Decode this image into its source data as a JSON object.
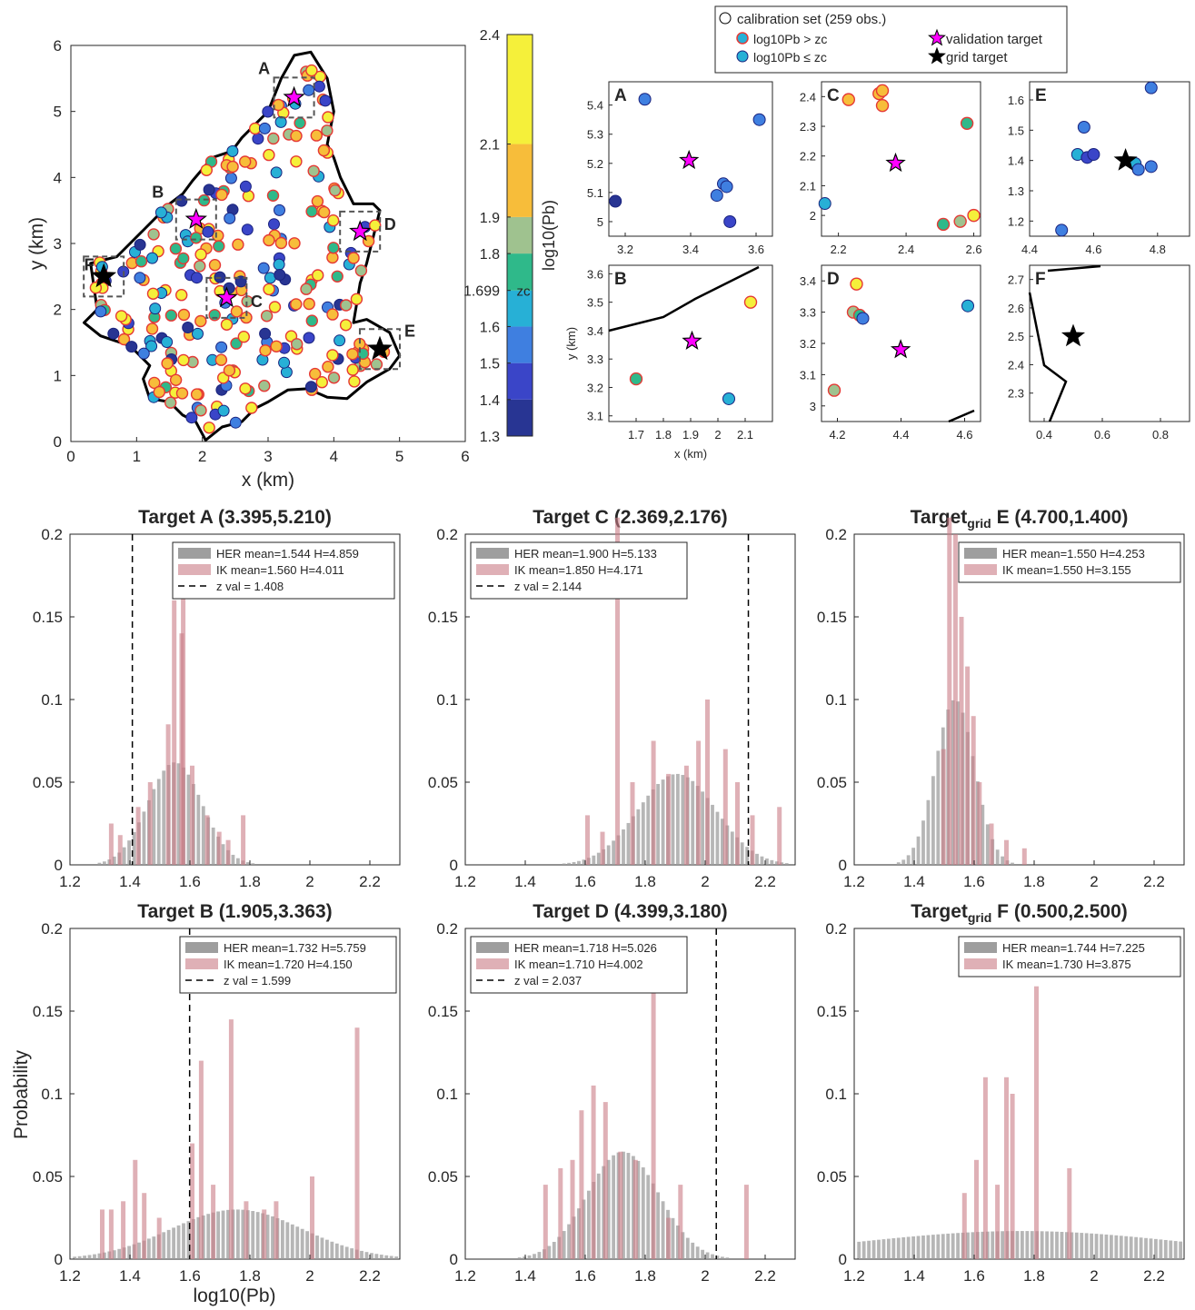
{
  "colors": {
    "colorbar": [
      "#283593",
      "#3a45c8",
      "#3f7fe0",
      "#27b0d6",
      "#2fb98a",
      "#9fc28f",
      "#f7bd3a",
      "#f5f03a"
    ],
    "outline": "#000000",
    "high_edge": "#e53935",
    "her_bar": "#9e9e9e",
    "ik_bar": "#c97b86",
    "validation_star": "#ff00ff"
  },
  "map": {
    "xlabel": "x (km)",
    "ylabel": "y (km)",
    "xticks": [
      "0",
      "1",
      "2",
      "3",
      "4",
      "5",
      "6"
    ],
    "yticks": [
      "0",
      "1",
      "2",
      "3",
      "4",
      "5",
      "6"
    ],
    "box_labels": [
      "A",
      "B",
      "C",
      "D",
      "E",
      "F"
    ]
  },
  "colorbar": {
    "ylabel": "log10(Pb)",
    "ticks": [
      "2.4",
      "2.1",
      "1.9",
      "1.8",
      "1.699",
      "1.6",
      "1.5",
      "1.4",
      "1.3"
    ],
    "zc_label": "zc"
  },
  "legend": {
    "calibration": "calibration set (259 obs.)",
    "high": "log10Pb > zc",
    "low": "log10Pb ≤ zc",
    "validation": "validation target",
    "grid": "grid target"
  },
  "insets": [
    {
      "label": "A",
      "xticks": [
        "3.2",
        "3.4",
        "3.6"
      ],
      "yticks": [
        "5",
        "5.1",
        "5.2",
        "5.3",
        "5.4"
      ]
    },
    {
      "label": "C",
      "xticks": [
        "2.2",
        "2.4",
        "2.6"
      ],
      "yticks": [
        "2",
        "2.1",
        "2.2",
        "2.3",
        "2.4"
      ]
    },
    {
      "label": "E",
      "xticks": [
        "4.4",
        "4.6",
        "4.8"
      ],
      "yticks": [
        "1.2",
        "1.3",
        "1.4",
        "1.5",
        "1.6"
      ]
    },
    {
      "label": "B",
      "xticks": [
        "1.7",
        "1.8",
        "1.9",
        "2",
        "2.1"
      ],
      "yticks": [
        "3.1",
        "3.2",
        "3.3",
        "3.4",
        "3.5",
        "3.6"
      ],
      "xlabel": "x (km)",
      "ylabel": "y (km)"
    },
    {
      "label": "D",
      "xticks": [
        "4.2",
        "4.4",
        "4.6"
      ],
      "yticks": [
        "3",
        "3.1",
        "3.2",
        "3.3",
        "3.4"
      ]
    },
    {
      "label": "F",
      "xticks": [
        "0.4",
        "0.6",
        "0.8"
      ],
      "yticks": [
        "2.3",
        "2.4",
        "2.5",
        "2.6",
        "2.7"
      ]
    }
  ],
  "chart_data": [
    {
      "type": "scatter",
      "title": "",
      "xlabel": "x (km)",
      "ylabel": "y (km)",
      "xlim": [
        0,
        6
      ],
      "ylim": [
        0,
        6
      ],
      "validation_targets": [
        {
          "label": "A",
          "x": 3.395,
          "y": 5.21
        },
        {
          "label": "B",
          "x": 1.905,
          "y": 3.363
        },
        {
          "label": "C",
          "x": 2.369,
          "y": 2.176
        },
        {
          "label": "D",
          "x": 4.399,
          "y": 3.18
        }
      ],
      "grid_targets": [
        {
          "label": "E",
          "x": 4.7,
          "y": 1.4
        },
        {
          "label": "F",
          "x": 0.5,
          "y": 2.5
        }
      ]
    },
    {
      "type": "bar",
      "title": "Target A (3.395,5.210)",
      "xlim": [
        1.2,
        2.3
      ],
      "ylim": [
        0,
        0.2
      ],
      "legend": [
        "HER mean=1.544 H=4.859",
        "IK mean=1.560 H=4.011",
        "z val = 1.408"
      ],
      "z_val": 1.408,
      "her": {
        "center": 1.544,
        "sd": 0.09,
        "peak": 0.062
      },
      "ik_peaks": [
        [
          1.33,
          0.025
        ],
        [
          1.36,
          0.018
        ],
        [
          1.42,
          0.035
        ],
        [
          1.46,
          0.05
        ],
        [
          1.52,
          0.085
        ],
        [
          1.54,
          0.16
        ],
        [
          1.565,
          0.14
        ],
        [
          1.57,
          0.17
        ],
        [
          1.6,
          0.06
        ],
        [
          1.65,
          0.03
        ],
        [
          1.69,
          0.02
        ],
        [
          1.72,
          0.015
        ],
        [
          1.77,
          0.03
        ]
      ]
    },
    {
      "type": "bar",
      "title": "Target C (2.369,2.176)",
      "xlim": [
        1.2,
        2.3
      ],
      "ylim": [
        0,
        0.2
      ],
      "legend": [
        "HER mean=1.900 H=5.133",
        "IK mean=1.850 H=4.171",
        "z val = 2.144"
      ],
      "z_val": 2.144,
      "her": {
        "center": 1.9,
        "sd": 0.13,
        "peak": 0.055
      },
      "ik_peaks": [
        [
          1.6,
          0.03
        ],
        [
          1.65,
          0.02
        ],
        [
          1.7,
          0.21
        ],
        [
          1.75,
          0.05
        ],
        [
          1.82,
          0.075
        ],
        [
          1.87,
          0.055
        ],
        [
          1.93,
          0.06
        ],
        [
          1.97,
          0.075
        ],
        [
          2.0,
          0.1
        ],
        [
          2.06,
          0.07
        ],
        [
          2.1,
          0.05
        ],
        [
          2.15,
          0.03
        ],
        [
          2.24,
          0.035
        ]
      ]
    },
    {
      "type": "bar",
      "title": "Target E (4.700,1.400)",
      "title_pre": "Target",
      "title_sub": "grid",
      "title_post": " E (4.700,1.400)",
      "xlim": [
        1.2,
        2.3
      ],
      "ylim": [
        0,
        0.2
      ],
      "legend": [
        "HER mean=1.550 H=4.253",
        "IK mean=1.550 H=3.155"
      ],
      "her": {
        "center": 1.53,
        "sd": 0.065,
        "peak": 0.1
      },
      "ik_peaks": [
        [
          1.49,
          0.07
        ],
        [
          1.51,
          0.21
        ],
        [
          1.53,
          0.2
        ],
        [
          1.55,
          0.15
        ],
        [
          1.57,
          0.12
        ],
        [
          1.59,
          0.09
        ],
        [
          1.61,
          0.05
        ],
        [
          1.65,
          0.025
        ],
        [
          1.7,
          0.015
        ],
        [
          1.76,
          0.01
        ]
      ]
    },
    {
      "type": "bar",
      "title": "Target B (1.905,3.363)",
      "xlim": [
        1.2,
        2.3
      ],
      "ylim": [
        0,
        0.2
      ],
      "legend": [
        "HER mean=1.732 H=5.759",
        "IK mean=1.720 H=4.150",
        "z val = 1.599"
      ],
      "z_val": 1.599,
      "her": {
        "center": 1.75,
        "sd": 0.22,
        "peak": 0.03
      },
      "ik_peaks": [
        [
          1.3,
          0.03
        ],
        [
          1.33,
          0.03
        ],
        [
          1.37,
          0.035
        ],
        [
          1.41,
          0.06
        ],
        [
          1.44,
          0.04
        ],
        [
          1.49,
          0.025
        ],
        [
          1.6,
          0.07
        ],
        [
          1.63,
          0.12
        ],
        [
          1.67,
          0.045
        ],
        [
          1.73,
          0.145
        ],
        [
          1.78,
          0.035
        ],
        [
          1.84,
          0.03
        ],
        [
          1.88,
          0.035
        ],
        [
          2.0,
          0.05
        ],
        [
          2.15,
          0.14
        ]
      ]
    },
    {
      "type": "bar",
      "title": "Target D (4.399,3.180)",
      "xlim": [
        1.2,
        2.3
      ],
      "ylim": [
        0,
        0.2
      ],
      "legend": [
        "HER mean=1.718 H=5.026",
        "IK mean=1.710 H=4.002",
        "z val = 2.037"
      ],
      "z_val": 2.037,
      "her": {
        "center": 1.72,
        "sd": 0.12,
        "peak": 0.065
      },
      "ik_peaks": [
        [
          1.46,
          0.045
        ],
        [
          1.51,
          0.055
        ],
        [
          1.55,
          0.06
        ],
        [
          1.58,
          0.09
        ],
        [
          1.62,
          0.105
        ],
        [
          1.66,
          0.095
        ],
        [
          1.71,
          0.065
        ],
        [
          1.76,
          0.06
        ],
        [
          1.82,
          0.165
        ],
        [
          1.87,
          0.025
        ],
        [
          1.91,
          0.045
        ],
        [
          2.13,
          0.045
        ]
      ]
    },
    {
      "type": "bar",
      "title": "Target F (0.500,2.500)",
      "title_pre": "Target",
      "title_sub": "grid",
      "title_post": " F (0.500,2.500)",
      "xlim": [
        1.2,
        2.3
      ],
      "ylim": [
        0,
        0.2
      ],
      "legend": [
        "HER mean=1.744 H=7.225",
        "IK mean=1.730 H=3.875"
      ],
      "her": {
        "center": 1.75,
        "sd": 0.55,
        "peak": 0.017
      },
      "ik_peaks": [
        [
          1.56,
          0.04
        ],
        [
          1.6,
          0.06
        ],
        [
          1.63,
          0.11
        ],
        [
          1.67,
          0.045
        ],
        [
          1.7,
          0.11
        ],
        [
          1.72,
          0.1
        ],
        [
          1.8,
          0.165
        ],
        [
          1.91,
          0.055
        ]
      ]
    }
  ],
  "hist_xticks": [
    "1.2",
    "1.4",
    "1.6",
    "1.8",
    "2",
    "2.2"
  ],
  "hist_yticks": [
    "0",
    "0.05",
    "0.1",
    "0.15",
    "0.2"
  ],
  "hist_xlabel": "log10(Pb)",
  "hist_ylabel": "Probability"
}
